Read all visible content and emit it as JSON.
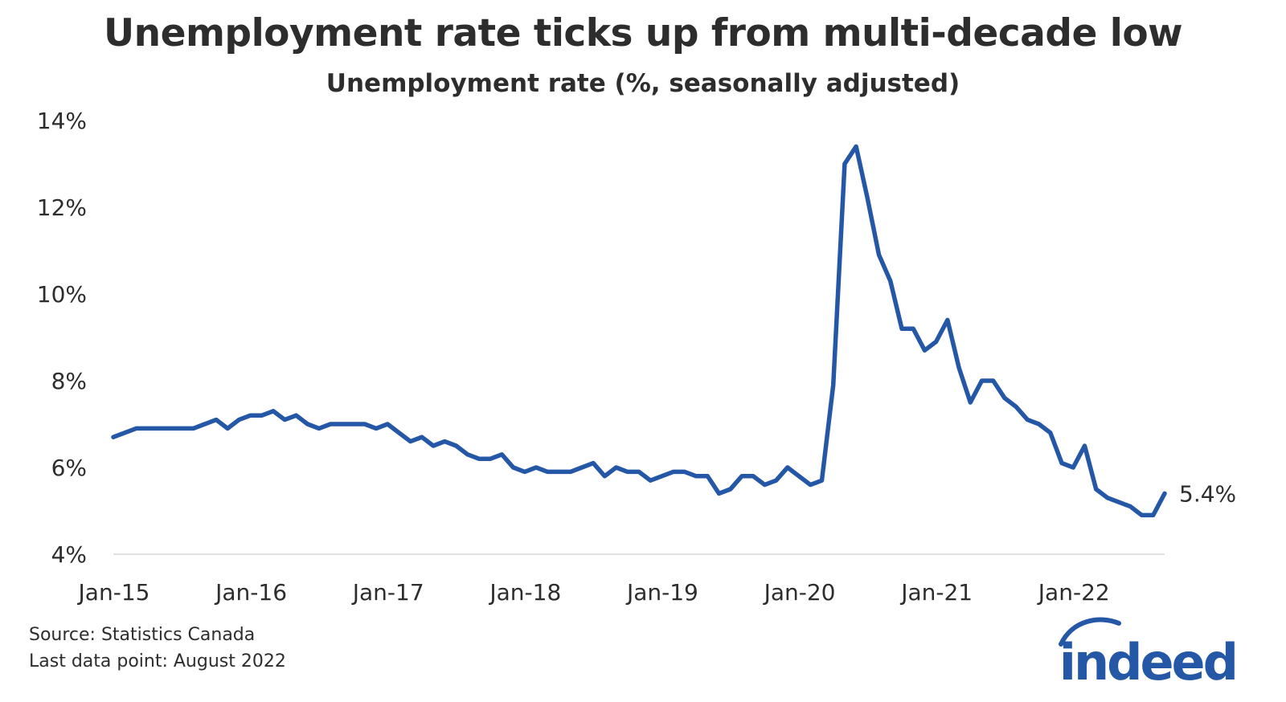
{
  "header": {
    "title": "Unemployment rate ticks up from multi-decade low",
    "subtitle": "Unemployment rate (%, seasonally adjusted)"
  },
  "footer": {
    "source": "Source: Statistics Canada",
    "last_point": "Last data point: August 2022"
  },
  "logo": {
    "text": "indeed",
    "color": "#2557a7"
  },
  "chart_data": {
    "type": "line",
    "title": "Unemployment rate ticks up from multi-decade low",
    "subtitle": "Unemployment rate (%, seasonally adjusted)",
    "xlabel": "",
    "ylabel": "",
    "ylim": [
      4,
      14
    ],
    "y_ticks": [
      4,
      6,
      8,
      10,
      12,
      14
    ],
    "y_tick_labels": [
      "4%",
      "6%",
      "8%",
      "10%",
      "12%",
      "14%"
    ],
    "x_tick_labels": [
      "Jan-15",
      "Jan-16",
      "Jan-17",
      "Jan-18",
      "Jan-19",
      "Jan-20",
      "Jan-21",
      "Jan-22"
    ],
    "x_start": "2015-01",
    "x_end": "2022-08",
    "grid": false,
    "line_color": "#2557a7",
    "end_label": "5.4%",
    "series": [
      {
        "values": [
          6.7,
          6.8,
          6.9,
          6.9,
          6.9,
          6.9,
          6.9,
          6.9,
          7.0,
          7.1,
          6.9,
          7.1,
          7.2,
          7.2,
          7.3,
          7.1,
          7.2,
          7.0,
          6.9,
          7.0,
          7.0,
          7.0,
          7.0,
          6.9,
          7.0,
          6.8,
          6.6,
          6.7,
          6.5,
          6.6,
          6.5,
          6.3,
          6.2,
          6.2,
          6.3,
          6.0,
          5.9,
          6.0,
          5.9,
          5.9,
          5.9,
          6.0,
          6.1,
          5.8,
          6.0,
          5.9,
          5.9,
          5.7,
          5.8,
          5.9,
          5.9,
          5.8,
          5.8,
          5.4,
          5.5,
          5.8,
          5.8,
          5.6,
          5.7,
          6.0,
          5.8,
          5.6,
          5.7,
          7.9,
          13.0,
          13.4,
          12.2,
          10.9,
          10.3,
          9.2,
          9.2,
          8.7,
          8.9,
          9.4,
          8.3,
          7.5,
          8.0,
          8.0,
          7.6,
          7.4,
          7.1,
          7.0,
          6.8,
          6.1,
          6.0,
          6.5,
          5.5,
          5.3,
          5.2,
          5.1,
          4.9,
          4.9,
          5.4
        ]
      }
    ]
  }
}
